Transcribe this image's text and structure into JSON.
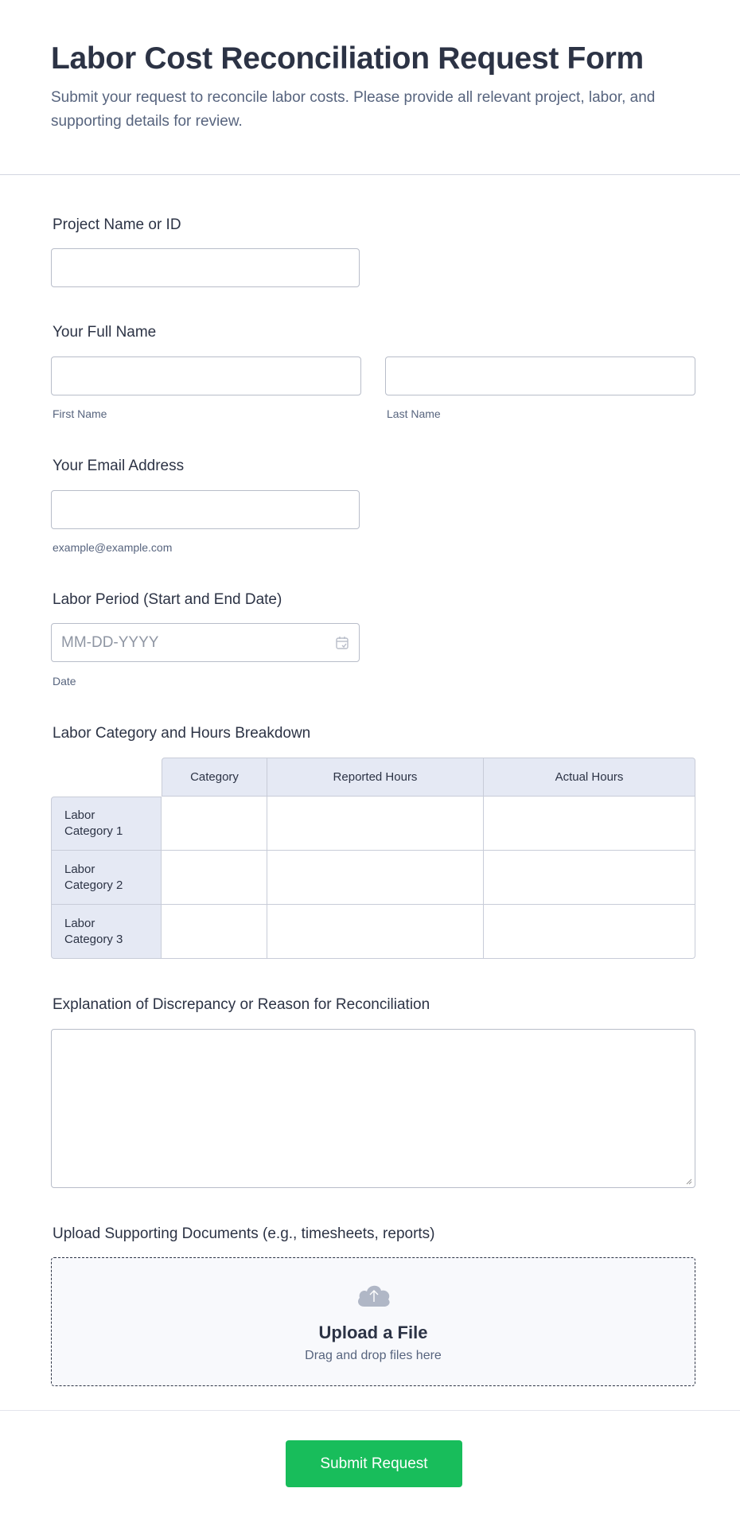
{
  "header": {
    "title": "Labor Cost Reconciliation Request Form",
    "subtitle": "Submit your request to reconcile labor costs. Please provide all relevant project, labor, and supporting details for review."
  },
  "fields": {
    "project": {
      "label": "Project Name or ID",
      "value": ""
    },
    "full_name": {
      "label": "Your Full Name",
      "first_sublabel": "First Name",
      "last_sublabel": "Last Name"
    },
    "email": {
      "label": "Your Email Address",
      "sublabel": "example@example.com"
    },
    "labor_period": {
      "label": "Labor Period (Start and End Date)",
      "placeholder": "MM-DD-YYYY",
      "sublabel": "Date",
      "icon": "calendar-icon"
    },
    "breakdown": {
      "label": "Labor Category and Hours Breakdown",
      "columns": [
        "Category",
        "Reported Hours",
        "Actual Hours"
      ],
      "rows": [
        "Labor Category 1",
        "Labor Category 2",
        "Labor Category 3"
      ]
    },
    "explanation": {
      "label": "Explanation of Discrepancy or Reason for Reconciliation"
    },
    "upload": {
      "label": "Upload Supporting Documents (e.g., timesheets, reports)",
      "title": "Upload a File",
      "hint": "Drag and drop files here",
      "icon": "cloud-upload-icon"
    }
  },
  "submit": {
    "label": "Submit Request",
    "color": "#18bd5b"
  }
}
